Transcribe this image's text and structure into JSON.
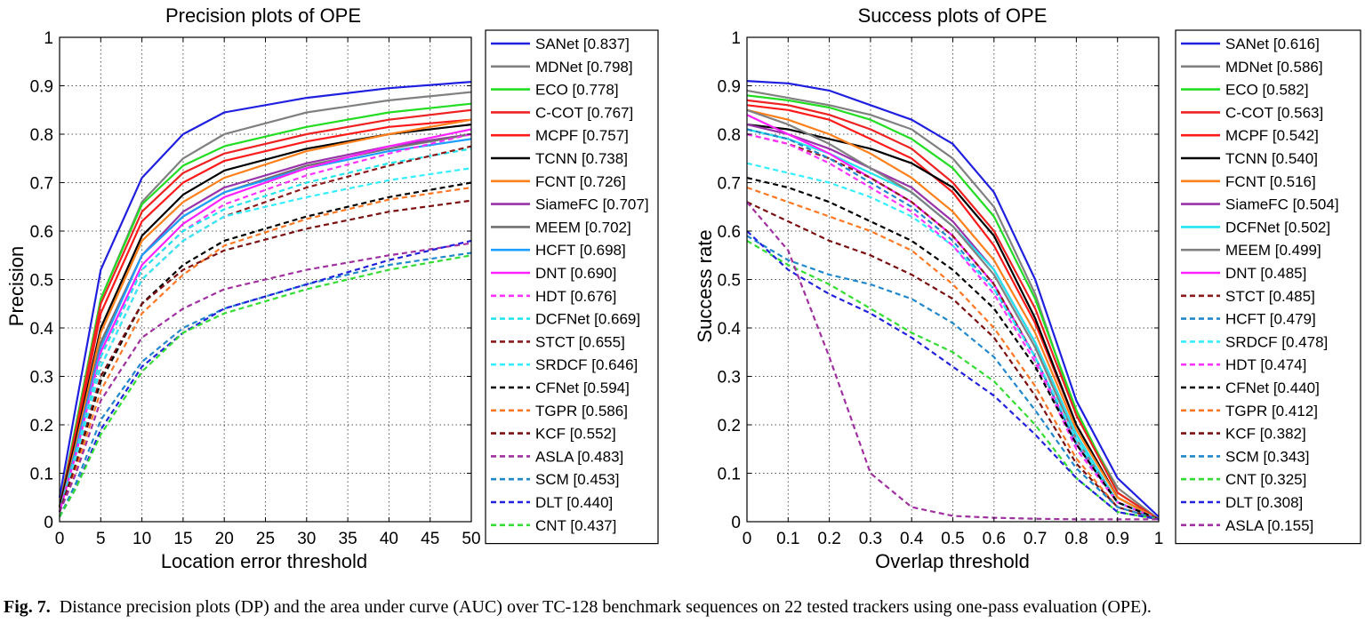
{
  "caption": {
    "label": "Fig. 7.",
    "text": "Distance precision plots (DP) and the area under curve (AUC) over TC-128 benchmark sequences on 22 tested trackers using one-pass evaluation (OPE)."
  },
  "chart_data": [
    {
      "type": "line",
      "title": "Precision plots of OPE",
      "xlabel": "Location error threshold",
      "ylabel": "Precision",
      "xlim": [
        0,
        50
      ],
      "ylim": [
        0,
        1
      ],
      "xticks": [
        0,
        5,
        10,
        15,
        20,
        25,
        30,
        35,
        40,
        45,
        50
      ],
      "xtick_labels": [
        "0",
        "5",
        "10",
        "15",
        "20",
        "25",
        "30",
        "35",
        "40",
        "45",
        "50"
      ],
      "yticks": [
        0,
        0.1,
        0.2,
        0.3,
        0.4,
        0.5,
        0.6,
        0.7,
        0.8,
        0.9,
        1
      ],
      "ytick_labels": [
        "0",
        "0.1",
        "0.2",
        "0.3",
        "0.4",
        "0.5",
        "0.6",
        "0.7",
        "0.8",
        "0.9",
        "1"
      ],
      "grid": true,
      "legend_position": "right outside",
      "x": [
        0,
        2,
        5,
        10,
        15,
        20,
        30,
        40,
        50
      ],
      "series": [
        {
          "name": "SANet [0.837]",
          "color": "#1f1fe0",
          "dash": false,
          "values": [
            0.05,
            0.24,
            0.52,
            0.71,
            0.8,
            0.845,
            0.875,
            0.895,
            0.908
          ]
        },
        {
          "name": "MDNet [0.798]",
          "color": "#808080",
          "dash": false,
          "values": [
            0.03,
            0.2,
            0.46,
            0.66,
            0.75,
            0.8,
            0.845,
            0.87,
            0.887
          ]
        },
        {
          "name": "ECO [0.778]",
          "color": "#22dd22",
          "dash": false,
          "values": [
            0.03,
            0.2,
            0.46,
            0.655,
            0.735,
            0.775,
            0.815,
            0.845,
            0.863
          ]
        },
        {
          "name": "C-COT [0.767]",
          "color": "#ee2222",
          "dash": false,
          "values": [
            0.03,
            0.19,
            0.45,
            0.64,
            0.72,
            0.76,
            0.8,
            0.83,
            0.85
          ]
        },
        {
          "name": "MCPF [0.757]",
          "color": "#ff1a1a",
          "dash": false,
          "values": [
            0.03,
            0.18,
            0.43,
            0.62,
            0.7,
            0.745,
            0.785,
            0.815,
            0.83
          ]
        },
        {
          "name": "TCNN [0.738]",
          "color": "#000000",
          "dash": false,
          "values": [
            0.03,
            0.17,
            0.4,
            0.59,
            0.675,
            0.725,
            0.77,
            0.8,
            0.82
          ]
        },
        {
          "name": "FCNT [0.726]",
          "color": "#ff7f1a",
          "dash": false,
          "values": [
            0.02,
            0.16,
            0.39,
            0.58,
            0.66,
            0.71,
            0.765,
            0.8,
            0.83
          ]
        },
        {
          "name": "SiameFC [0.707]",
          "color": "#9933aa",
          "dash": false,
          "values": [
            0.02,
            0.15,
            0.37,
            0.55,
            0.64,
            0.69,
            0.74,
            0.775,
            0.8
          ]
        },
        {
          "name": "MEEM [0.702]",
          "color": "#707070",
          "dash": false,
          "values": [
            0.02,
            0.15,
            0.37,
            0.55,
            0.63,
            0.68,
            0.735,
            0.77,
            0.8
          ]
        },
        {
          "name": "HCFT [0.698]",
          "color": "#1e9fff",
          "dash": false,
          "values": [
            0.02,
            0.15,
            0.36,
            0.55,
            0.63,
            0.68,
            0.73,
            0.765,
            0.79
          ]
        },
        {
          "name": "DNT [0.690]",
          "color": "#ff22ff",
          "dash": false,
          "values": [
            0.02,
            0.14,
            0.35,
            0.53,
            0.615,
            0.67,
            0.73,
            0.775,
            0.81
          ]
        },
        {
          "name": "HDT [0.676]",
          "color": "#ff33ff",
          "dash": true,
          "values": [
            0.02,
            0.14,
            0.34,
            0.52,
            0.6,
            0.655,
            0.715,
            0.76,
            0.8
          ]
        },
        {
          "name": "DCFNet [0.669]",
          "color": "#22e5ee",
          "dash": true,
          "values": [
            0.02,
            0.14,
            0.34,
            0.52,
            0.6,
            0.645,
            0.7,
            0.74,
            0.77
          ]
        },
        {
          "name": "STCT [0.655]",
          "color": "#8b1a1a",
          "dash": true,
          "values": [
            0.02,
            0.13,
            0.32,
            0.5,
            0.58,
            0.63,
            0.69,
            0.735,
            0.775
          ]
        },
        {
          "name": "SRDCF [0.646]",
          "color": "#33eeff",
          "dash": true,
          "values": [
            0.02,
            0.13,
            0.32,
            0.5,
            0.58,
            0.63,
            0.67,
            0.705,
            0.73
          ]
        },
        {
          "name": "CFNet [0.594]",
          "color": "#000000",
          "dash": true,
          "values": [
            0.02,
            0.12,
            0.29,
            0.45,
            0.53,
            0.58,
            0.63,
            0.67,
            0.7
          ]
        },
        {
          "name": "TGPR [0.586]",
          "color": "#ff7722",
          "dash": true,
          "values": [
            0.02,
            0.11,
            0.27,
            0.43,
            0.51,
            0.57,
            0.625,
            0.665,
            0.69
          ]
        },
        {
          "name": "KCF [0.552]",
          "color": "#7a1010",
          "dash": true,
          "values": [
            0.02,
            0.12,
            0.3,
            0.45,
            0.52,
            0.56,
            0.605,
            0.64,
            0.663
          ]
        },
        {
          "name": "ASLA [0.483]",
          "color": "#a030a0",
          "dash": true,
          "values": [
            0.02,
            0.1,
            0.25,
            0.38,
            0.44,
            0.48,
            0.52,
            0.55,
            0.575
          ]
        },
        {
          "name": "SCM [0.453]",
          "color": "#2288cc",
          "dash": true,
          "values": [
            0.01,
            0.08,
            0.21,
            0.33,
            0.4,
            0.44,
            0.49,
            0.53,
            0.555
          ]
        },
        {
          "name": "DLT [0.440]",
          "color": "#2222dd",
          "dash": true,
          "values": [
            0.01,
            0.07,
            0.19,
            0.32,
            0.39,
            0.44,
            0.49,
            0.54,
            0.58
          ]
        },
        {
          "name": "CNT [0.437]",
          "color": "#33dd33",
          "dash": true,
          "values": [
            0.01,
            0.07,
            0.18,
            0.31,
            0.39,
            0.43,
            0.48,
            0.52,
            0.55
          ]
        }
      ]
    },
    {
      "type": "line",
      "title": "Success plots of OPE",
      "xlabel": "Overlap threshold",
      "ylabel": "Success rate",
      "xlim": [
        0,
        1
      ],
      "ylim": [
        0,
        1
      ],
      "xticks": [
        0,
        0.1,
        0.2,
        0.3,
        0.4,
        0.5,
        0.6,
        0.7,
        0.8,
        0.9,
        1
      ],
      "xtick_labels": [
        "0",
        "0.1",
        "0.2",
        "0.3",
        "0.4",
        "0.5",
        "0.6",
        "0.7",
        "0.8",
        "0.9",
        "1"
      ],
      "yticks": [
        0,
        0.1,
        0.2,
        0.3,
        0.4,
        0.5,
        0.6,
        0.7,
        0.8,
        0.9,
        1
      ],
      "ytick_labels": [
        "0",
        "0.1",
        "0.2",
        "0.3",
        "0.4",
        "0.5",
        "0.6",
        "0.7",
        "0.8",
        "0.9",
        "1"
      ],
      "grid": true,
      "legend_position": "right outside",
      "x": [
        0,
        0.1,
        0.2,
        0.3,
        0.4,
        0.5,
        0.6,
        0.7,
        0.8,
        0.9,
        1.0
      ],
      "series": [
        {
          "name": "SANet [0.616]",
          "color": "#1f1fe0",
          "dash": false,
          "values": [
            0.91,
            0.905,
            0.89,
            0.86,
            0.83,
            0.78,
            0.68,
            0.5,
            0.25,
            0.09,
            0.01
          ]
        },
        {
          "name": "MDNet [0.586]",
          "color": "#808080",
          "dash": false,
          "values": [
            0.89,
            0.875,
            0.86,
            0.84,
            0.81,
            0.75,
            0.65,
            0.47,
            0.22,
            0.07,
            0.005
          ]
        },
        {
          "name": "ECO [0.582]",
          "color": "#22dd22",
          "dash": false,
          "values": [
            0.88,
            0.87,
            0.855,
            0.83,
            0.79,
            0.73,
            0.63,
            0.46,
            0.23,
            0.06,
            0.005
          ]
        },
        {
          "name": "C-COT [0.563]",
          "color": "#ee2222",
          "dash": false,
          "values": [
            0.87,
            0.86,
            0.84,
            0.81,
            0.77,
            0.7,
            0.6,
            0.44,
            0.22,
            0.06,
            0.005
          ]
        },
        {
          "name": "MCPF [0.542]",
          "color": "#ff1a1a",
          "dash": false,
          "values": [
            0.86,
            0.85,
            0.83,
            0.79,
            0.75,
            0.68,
            0.57,
            0.41,
            0.2,
            0.05,
            0.005
          ]
        },
        {
          "name": "TCNN [0.540]",
          "color": "#000000",
          "dash": false,
          "values": [
            0.82,
            0.81,
            0.79,
            0.77,
            0.74,
            0.69,
            0.59,
            0.42,
            0.2,
            0.05,
            0.005
          ]
        },
        {
          "name": "FCNT [0.516]",
          "color": "#ff7f1a",
          "dash": false,
          "values": [
            0.85,
            0.83,
            0.8,
            0.76,
            0.71,
            0.64,
            0.54,
            0.39,
            0.19,
            0.05,
            0.005
          ]
        },
        {
          "name": "SiameFC [0.504]",
          "color": "#9933aa",
          "dash": false,
          "values": [
            0.82,
            0.8,
            0.77,
            0.73,
            0.69,
            0.62,
            0.52,
            0.37,
            0.18,
            0.04,
            0.005
          ]
        },
        {
          "name": "DCFNet [0.502]",
          "color": "#22e5ee",
          "dash": false,
          "values": [
            0.81,
            0.79,
            0.76,
            0.72,
            0.68,
            0.61,
            0.52,
            0.37,
            0.18,
            0.04,
            0.005
          ]
        },
        {
          "name": "MEEM [0.499]",
          "color": "#808080",
          "dash": false,
          "values": [
            0.85,
            0.82,
            0.78,
            0.73,
            0.68,
            0.61,
            0.51,
            0.36,
            0.17,
            0.04,
            0.005
          ]
        },
        {
          "name": "DNT [0.485]",
          "color": "#ff22ff",
          "dash": false,
          "values": [
            0.84,
            0.8,
            0.76,
            0.71,
            0.66,
            0.59,
            0.49,
            0.34,
            0.16,
            0.04,
            0.005
          ]
        },
        {
          "name": "STCT [0.485]",
          "color": "#8b1a1a",
          "dash": true,
          "values": [
            0.8,
            0.78,
            0.75,
            0.71,
            0.66,
            0.59,
            0.49,
            0.34,
            0.16,
            0.04,
            0.005
          ]
        },
        {
          "name": "HCFT [0.479]",
          "color": "#2288cc",
          "dash": true,
          "values": [
            0.81,
            0.79,
            0.75,
            0.7,
            0.65,
            0.58,
            0.48,
            0.34,
            0.16,
            0.04,
            0.005
          ]
        },
        {
          "name": "SRDCF [0.478]",
          "color": "#33eeff",
          "dash": true,
          "values": [
            0.74,
            0.72,
            0.7,
            0.67,
            0.63,
            0.57,
            0.48,
            0.34,
            0.17,
            0.04,
            0.005
          ]
        },
        {
          "name": "HDT [0.474]",
          "color": "#ff33ff",
          "dash": true,
          "values": [
            0.8,
            0.78,
            0.74,
            0.69,
            0.64,
            0.57,
            0.47,
            0.33,
            0.15,
            0.04,
            0.005
          ]
        },
        {
          "name": "CFNet [0.440]",
          "color": "#000000",
          "dash": true,
          "values": [
            0.71,
            0.69,
            0.66,
            0.62,
            0.58,
            0.52,
            0.44,
            0.32,
            0.16,
            0.04,
            0.005
          ]
        },
        {
          "name": "TGPR [0.412]",
          "color": "#ff7722",
          "dash": true,
          "values": [
            0.69,
            0.66,
            0.63,
            0.6,
            0.56,
            0.49,
            0.4,
            0.28,
            0.13,
            0.03,
            0.005
          ]
        },
        {
          "name": "KCF [0.382]",
          "color": "#7a1010",
          "dash": true,
          "values": [
            0.66,
            0.62,
            0.58,
            0.55,
            0.51,
            0.46,
            0.38,
            0.26,
            0.12,
            0.03,
            0.005
          ]
        },
        {
          "name": "SCM [0.343]",
          "color": "#2288cc",
          "dash": true,
          "values": [
            0.59,
            0.54,
            0.51,
            0.49,
            0.46,
            0.41,
            0.34,
            0.23,
            0.11,
            0.03,
            0.005
          ]
        },
        {
          "name": "CNT [0.325]",
          "color": "#33dd33",
          "dash": true,
          "values": [
            0.58,
            0.53,
            0.49,
            0.44,
            0.39,
            0.35,
            0.29,
            0.2,
            0.09,
            0.02,
            0.005
          ]
        },
        {
          "name": "DLT [0.308]",
          "color": "#2222dd",
          "dash": true,
          "values": [
            0.6,
            0.52,
            0.47,
            0.43,
            0.38,
            0.32,
            0.26,
            0.18,
            0.09,
            0.02,
            0.005
          ]
        },
        {
          "name": "ASLA [0.155]",
          "color": "#a030a0",
          "dash": true,
          "values": [
            0.66,
            0.56,
            0.34,
            0.1,
            0.03,
            0.012,
            0.008,
            0.006,
            0.005,
            0.005,
            0.005
          ]
        }
      ]
    }
  ]
}
